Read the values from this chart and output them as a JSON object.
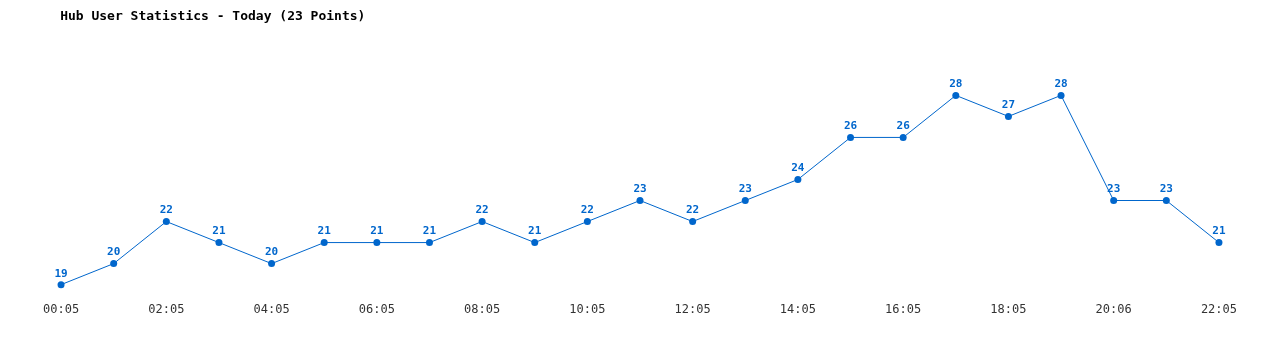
{
  "chart_data": {
    "type": "line",
    "title": "Hub User Statistics - Today (23 Points)",
    "categories": [
      "00:05",
      null,
      "02:05",
      null,
      "04:05",
      null,
      "06:05",
      null,
      "08:05",
      null,
      "10:05",
      null,
      "12:05",
      null,
      "14:05",
      null,
      "16:05",
      null,
      "18:05",
      null,
      "20:06",
      null,
      "22:05"
    ],
    "series": [
      {
        "color": "#0066cc",
        "values": [
          19,
          20,
          22,
          21,
          20,
          21,
          21,
          21,
          22,
          21,
          22,
          23,
          22,
          23,
          24,
          26,
          26,
          28,
          27,
          28,
          23,
          23,
          21
        ]
      }
    ],
    "data_labels": true,
    "grid": false,
    "marker": "circle",
    "line_style": "solid"
  }
}
